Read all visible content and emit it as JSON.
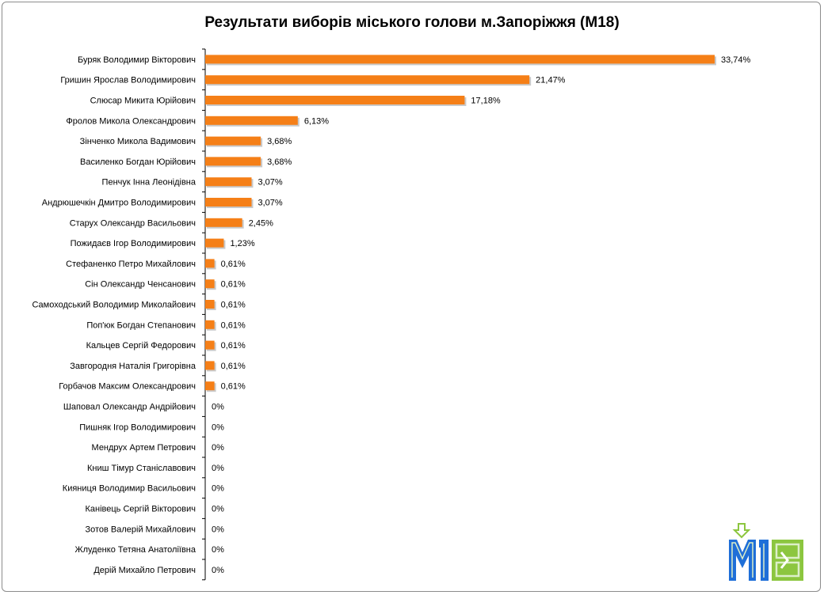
{
  "chart_data": {
    "type": "bar",
    "orientation": "horizontal",
    "title": "Результати виборів міського голови м.Запоріжжя (М18)",
    "categories": [
      "Буряк Володимир Вікторович",
      "Гришин Ярослав Володимирович",
      "Слюсар Микита Юрійович",
      "Фролов Микола Олександрович",
      "Зінченко Микола Вадимович",
      "Василенко Богдан Юрійович",
      "Пенчук Інна Леонідівна",
      "Андрюшечкін Дмитро Володимирович",
      "Старух Олександр Васильович",
      "Пожидаєв Ігор Володимирович",
      "Стефаненко Петро Михайлович",
      "Сін Олександр Ченсанович",
      "Самоходський Володимир Миколайович",
      "Поп'юк Богдан Степанович",
      "Кальцев Сергій Федорович",
      "Завгородня Наталія Григорівна",
      "Горбачов Максим Олександрович",
      "Шаповал Олександр Андрійович",
      "Пишняк Ігор Володимирович",
      "Мендрух Артем Петрович",
      "Книш Тімур Станіславович",
      "Кияниця Володимир Васильович",
      "Канівець Сергій Вікторович",
      "Зотов Валерій Михайлович",
      "Жлуденко Тетяна Анатоліївна",
      "Дерій Михайло Петрович"
    ],
    "values": [
      33.74,
      21.47,
      17.18,
      6.13,
      3.68,
      3.68,
      3.07,
      3.07,
      2.45,
      1.23,
      0.61,
      0.61,
      0.61,
      0.61,
      0.61,
      0.61,
      0.61,
      0,
      0,
      0,
      0,
      0,
      0,
      0,
      0,
      0
    ],
    "value_labels": [
      "33,74%",
      "21,47%",
      "17,18%",
      "6,13%",
      "3,68%",
      "3,68%",
      "3,07%",
      "3,07%",
      "2,45%",
      "1,23%",
      "0,61%",
      "0,61%",
      "0,61%",
      "0,61%",
      "0,61%",
      "0,61%",
      "0,61%",
      "0%",
      "0%",
      "0%",
      "0%",
      "0%",
      "0%",
      "0%",
      "0%",
      "0%"
    ],
    "unit": "%",
    "xlim": [
      0,
      36
    ],
    "grid": false,
    "legend": "none",
    "colors": {
      "bar": "#f57f17",
      "bar_shadow": "#c9c9c9",
      "axis": "#000000"
    }
  },
  "logo": {
    "text": "M18",
    "colors": {
      "blue": "#1f6fd8",
      "green": "#8cc63f",
      "light": "#dcefc8"
    }
  }
}
